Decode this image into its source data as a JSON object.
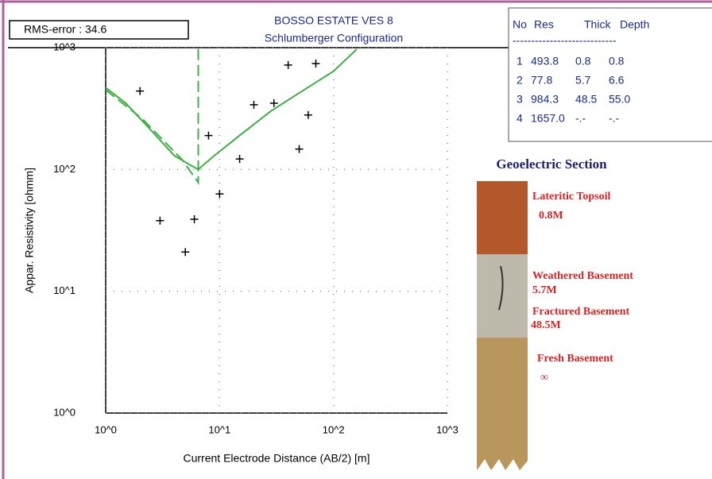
{
  "chart_data": {
    "type": "scatter",
    "title": "BOSSO ESTATE VES 8",
    "subtitle": "Schlumberger Configuration",
    "annotation": "RMS-error :  34.6",
    "x_label": "Current Electrode Distance (AB/2) [m]",
    "y_label": "Appar. Resistivity [ohmm]",
    "x": [
      2,
      3,
      5,
      6,
      8,
      10,
      15,
      20,
      30,
      40,
      50,
      60,
      70
    ],
    "values": [
      440,
      38,
      21,
      39,
      190,
      63,
      122,
      340,
      350,
      720,
      147,
      280,
      740
    ],
    "color": "#000000",
    "lines": [
      {
        "color": "#3cb043",
        "dashed": false,
        "x": [
          1,
          1.5,
          2.5,
          4,
          5.6,
          6.5,
          9,
          15,
          28,
          53,
          100,
          160
        ],
        "values": [
          470,
          350,
          210,
          130,
          108,
          100,
          130,
          190,
          300,
          440,
          640,
          970
        ]
      },
      {
        "color": "#3cb043",
        "dashed": true,
        "x": [
          1,
          2.1,
          4.7,
          6.5,
          6.5
        ],
        "values": [
          450,
          260,
          120,
          78,
          1000
        ]
      }
    ],
    "xlim": [
      1,
      1000
    ],
    "ylim": [
      1,
      1000
    ],
    "xticks": [
      {
        "value": 1,
        "label": "10^0"
      },
      {
        "value": 10,
        "label": "10^1"
      },
      {
        "value": 100,
        "label": "10^2"
      },
      {
        "value": 1000,
        "label": "10^3"
      }
    ],
    "yticks": [
      {
        "value": 1,
        "label": "10^0"
      },
      {
        "value": 10,
        "label": "10^1"
      },
      {
        "value": 100,
        "label": "10^2"
      },
      {
        "value": 1000,
        "label": "10^3"
      }
    ],
    "log_x": true,
    "log_y": true,
    "grid": true
  },
  "layer_table": {
    "header": [
      "No",
      "Res",
      "Thick",
      "Depth"
    ],
    "separator": "----------------------------",
    "rows": [
      [
        "1",
        "493.8",
        "0.8",
        "0.8"
      ],
      [
        "2",
        "77.8",
        "5.7",
        "6.6"
      ],
      [
        "3",
        "984.3",
        "48.5",
        "55.0"
      ],
      [
        "4",
        "1657.0",
        "-.-",
        "-.-"
      ]
    ]
  },
  "section": {
    "title": "Geoelectric Section",
    "layers": [
      {
        "name": "Lateritic Topsoil",
        "thickness": "0.8M"
      },
      {
        "name": "Weathered Basement",
        "thickness": "5.7M"
      },
      {
        "name": "Fractured Basement",
        "thickness": "48.5M"
      },
      {
        "name": "Fresh Basement",
        "thickness": "∞"
      }
    ]
  }
}
